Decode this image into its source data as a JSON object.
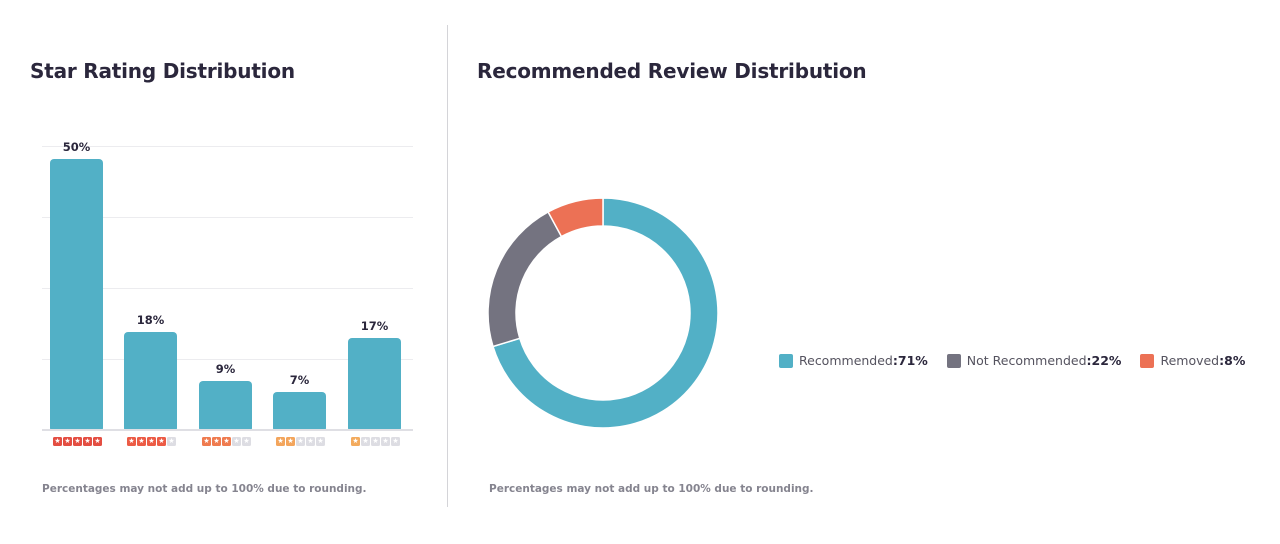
{
  "left_panel": {
    "title": "Star Rating Distribution",
    "footnote": "Percentages may not add up to 100% due to rounding."
  },
  "right_panel": {
    "title": "Recommended Review Distribution",
    "footnote": "Percentages may not add up to 100% due to rounding."
  },
  "colors": {
    "bar": "#52b0c6",
    "recommended": "#52b0c6",
    "not_recommended": "#747380",
    "removed": "#ec7155",
    "star_5": "#e44e42",
    "star_4": "#ec5b45",
    "star_3": "#ef7b4f",
    "star_2": "#f3a55c",
    "star_1": "#f3ab5e",
    "star_empty": "#dddde3"
  },
  "bars": [
    {
      "label": "50%",
      "stars": 5,
      "value": 50
    },
    {
      "label": "18%",
      "stars": 4,
      "value": 18
    },
    {
      "label": "9%",
      "stars": 3,
      "value": 9
    },
    {
      "label": "7%",
      "stars": 2,
      "value": 7
    },
    {
      "label": "17%",
      "stars": 1,
      "value": 17
    }
  ],
  "legend": [
    {
      "name": "Recommended",
      "sep": ": ",
      "value": "71%"
    },
    {
      "name": "Not Recommended",
      "sep": ": ",
      "value": "22%"
    },
    {
      "name": "Removed",
      "sep": ": ",
      "value": "8%"
    }
  ],
  "chart_data": [
    {
      "type": "bar",
      "title": "Star Rating Distribution",
      "categories": [
        "5 stars",
        "4 stars",
        "3 stars",
        "2 stars",
        "1 star"
      ],
      "values": [
        50,
        18,
        9,
        7,
        17
      ],
      "data_labels": [
        "50%",
        "18%",
        "9%",
        "7%",
        "17%"
      ],
      "xlabel": "",
      "ylabel": "",
      "ylim": [
        0,
        50
      ],
      "grid": true,
      "legend": null,
      "annotations": [
        "Percentages may not add up to 100% due to rounding."
      ]
    },
    {
      "type": "pie",
      "subtype": "donut",
      "title": "Recommended Review Distribution",
      "categories": [
        "Recommended",
        "Not Recommended",
        "Removed"
      ],
      "values": [
        71,
        22,
        8
      ],
      "colors": [
        "#52b0c6",
        "#747380",
        "#ec7155"
      ],
      "legend_position": "right",
      "annotations": [
        "Percentages may not add up to 100% due to rounding."
      ]
    }
  ]
}
